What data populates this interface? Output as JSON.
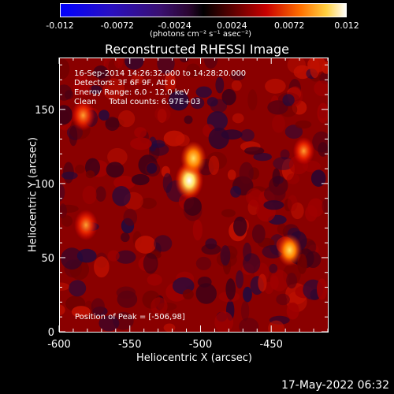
{
  "chart_data": {
    "type": "heatmap",
    "title": "Reconstructed RHESSI Image",
    "xlabel": "Heliocentric X (arcsec)",
    "ylabel": "Heliocentric Y (arcsec)",
    "xlim": [
      -600,
      -410
    ],
    "ylim": [
      0,
      185
    ],
    "x_ticks": [
      "-600",
      "-550",
      "-500",
      "-450"
    ],
    "x_tick_values": [
      -600,
      -550,
      -500,
      -450
    ],
    "y_ticks": [
      "0",
      "50",
      "100",
      "150"
    ],
    "y_tick_values": [
      0,
      50,
      100,
      150
    ],
    "colorbar": {
      "min": -0.012,
      "max": 0.012,
      "ticks": [
        "-0.012",
        "-0.0072",
        "-0.0024",
        "0.0024",
        "0.0072",
        "0.012"
      ],
      "tick_values": [
        -0.012,
        -0.0072,
        -0.0024,
        0.0024,
        0.0072,
        0.012
      ],
      "units": "(photons cm⁻² s⁻¹ asec⁻²)"
    },
    "sources": [
      {
        "x": -508,
        "y": 102,
        "value": 0.012
      },
      {
        "x": -505,
        "y": 117,
        "value": 0.0095
      },
      {
        "x": -583,
        "y": 146,
        "value": 0.0075
      },
      {
        "x": -581,
        "y": 72,
        "value": 0.0075
      },
      {
        "x": -437,
        "y": 55,
        "value": 0.0085
      },
      {
        "x": -427,
        "y": 122,
        "value": 0.0055
      }
    ],
    "annotations": {
      "time": "16-Sep-2014 14:26:32.000 to 14:28:20.000",
      "detectors": "Detectors: 3F 6F 9F, Att 0",
      "energy": "Energy Range: 6.0 - 12.0 keV",
      "clean": "Clean     Total counts: 6.97E+03",
      "peak": "Position of Peak = [-506,98]"
    }
  },
  "footer": {
    "timestamp": "17-May-2022 06:32"
  }
}
